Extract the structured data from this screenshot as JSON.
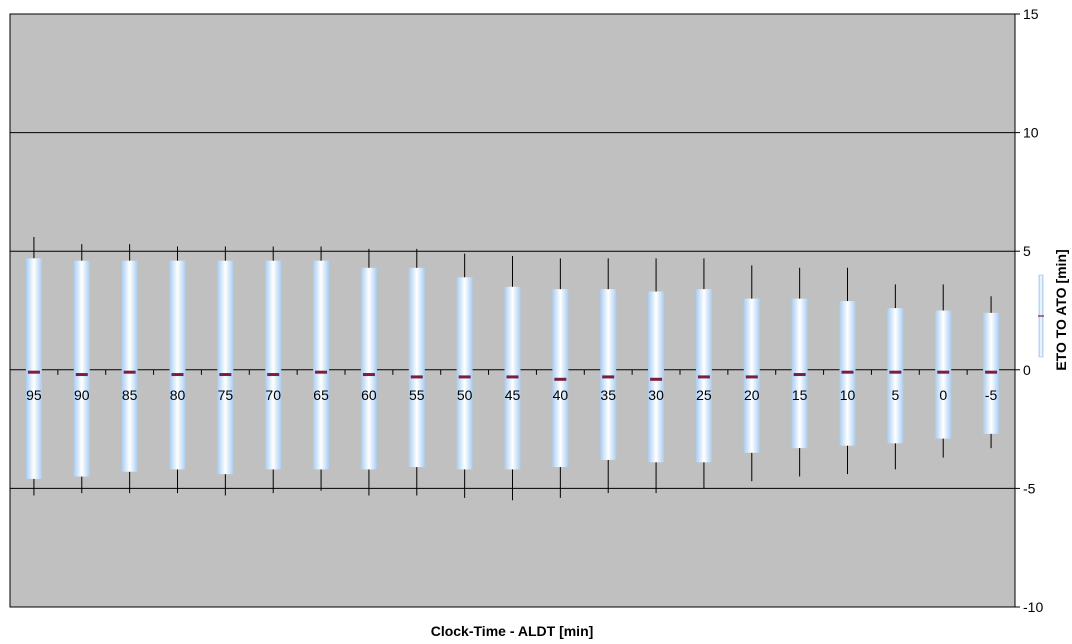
{
  "chart_data": {
    "type": "box",
    "title": "",
    "xlabel": "Clock-Time - ALDT [min]",
    "ylabel": "ETO TO ATO [min]",
    "ylim": [
      -10,
      15
    ],
    "yticks": [
      -10,
      -5,
      0,
      5,
      10,
      15
    ],
    "y_axis_side": "right",
    "grid": "horizontal",
    "legend": "none",
    "categories": [
      "95",
      "90",
      "85",
      "80",
      "75",
      "70",
      "65",
      "60",
      "55",
      "50",
      "45",
      "40",
      "35",
      "30",
      "25",
      "20",
      "15",
      "10",
      "5",
      "0",
      "-5"
    ],
    "series": [
      {
        "whisker_low": [
          -5.3,
          -5.2,
          -5.2,
          -5.2,
          -5.3,
          -5.2,
          -5.1,
          -5.3,
          -5.3,
          -5.4,
          -5.5,
          -5.4,
          -5.2,
          -5.2,
          -5.0,
          -4.7,
          -4.5,
          -4.4,
          -4.2,
          -3.7,
          -3.3
        ],
        "box_low": [
          -4.6,
          -4.5,
          -4.3,
          -4.2,
          -4.4,
          -4.2,
          -4.2,
          -4.2,
          -4.1,
          -4.2,
          -4.2,
          -4.1,
          -3.8,
          -3.9,
          -3.9,
          -3.5,
          -3.3,
          -3.2,
          -3.1,
          -2.9,
          -2.7
        ],
        "median": [
          -0.1,
          -0.2,
          -0.1,
          -0.2,
          -0.2,
          -0.2,
          -0.1,
          -0.2,
          -0.3,
          -0.3,
          -0.3,
          -0.4,
          -0.3,
          -0.4,
          -0.3,
          -0.3,
          -0.2,
          -0.1,
          -0.1,
          -0.1,
          -0.1
        ],
        "box_high": [
          4.7,
          4.6,
          4.6,
          4.6,
          4.6,
          4.6,
          4.6,
          4.3,
          4.3,
          3.9,
          3.5,
          3.4,
          3.4,
          3.3,
          3.4,
          3.0,
          3.0,
          2.9,
          2.6,
          2.5,
          2.4
        ],
        "whisker_high": [
          5.6,
          5.3,
          5.3,
          5.2,
          5.2,
          5.2,
          5.2,
          5.1,
          5.1,
          4.9,
          4.8,
          4.7,
          4.7,
          4.7,
          4.7,
          4.4,
          4.3,
          4.3,
          3.6,
          3.6,
          3.1
        ]
      }
    ],
    "colors": {
      "plot_background": "#c0c0c0",
      "gridline": "#000000",
      "box_edge": "#a8cdf2",
      "box_center": "#ffffff",
      "whisker": "#000000",
      "median": "#7a1f3d"
    }
  }
}
